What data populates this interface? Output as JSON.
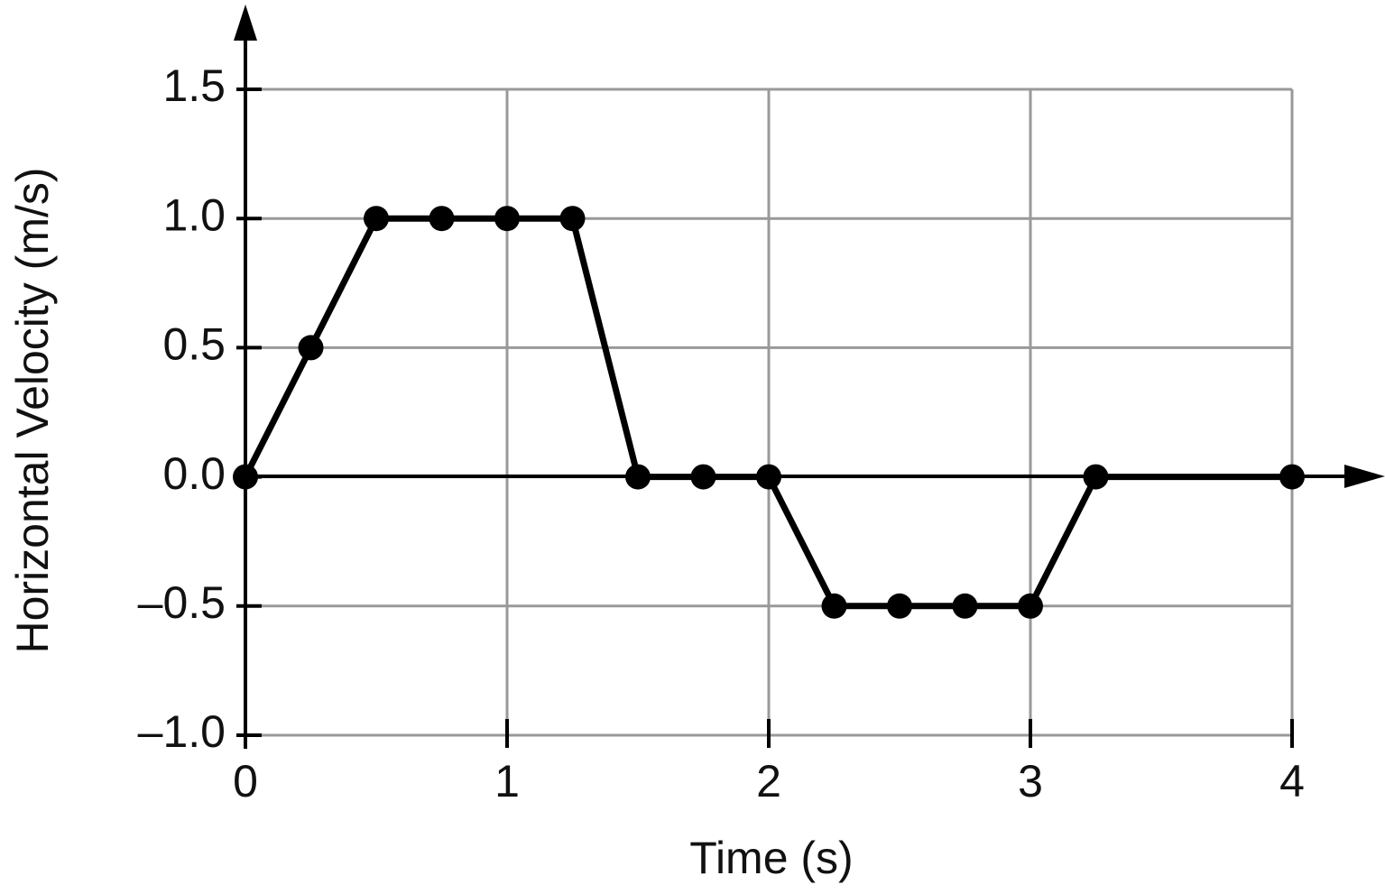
{
  "chart_data": {
    "type": "line",
    "xlabel": "Time (s)",
    "ylabel": "Horizontal Velocity (m/s)",
    "x": [
      0,
      0.25,
      0.5,
      0.75,
      1,
      1.25,
      1.5,
      1.75,
      2,
      2.25,
      2.5,
      2.75,
      3,
      3.25,
      4
    ],
    "values": [
      0,
      0.5,
      1,
      1,
      1,
      1,
      0,
      0,
      0,
      -0.5,
      -0.5,
      -0.5,
      -0.5,
      0,
      0
    ],
    "color": "#000000",
    "xlim": [
      0,
      4
    ],
    "xticks": [
      0,
      1,
      2,
      3,
      4
    ],
    "ylim": [
      -1,
      1.5
    ],
    "yticks": [
      1.5,
      {
        "value": 1,
        "label": "1.0"
      },
      0.5,
      {
        "value": 0,
        "label": "0.0"
      },
      {
        "value": -0.5,
        "label": "–0.5"
      },
      {
        "value": -1,
        "label": "–1.0"
      }
    ],
    "grid": true
  }
}
